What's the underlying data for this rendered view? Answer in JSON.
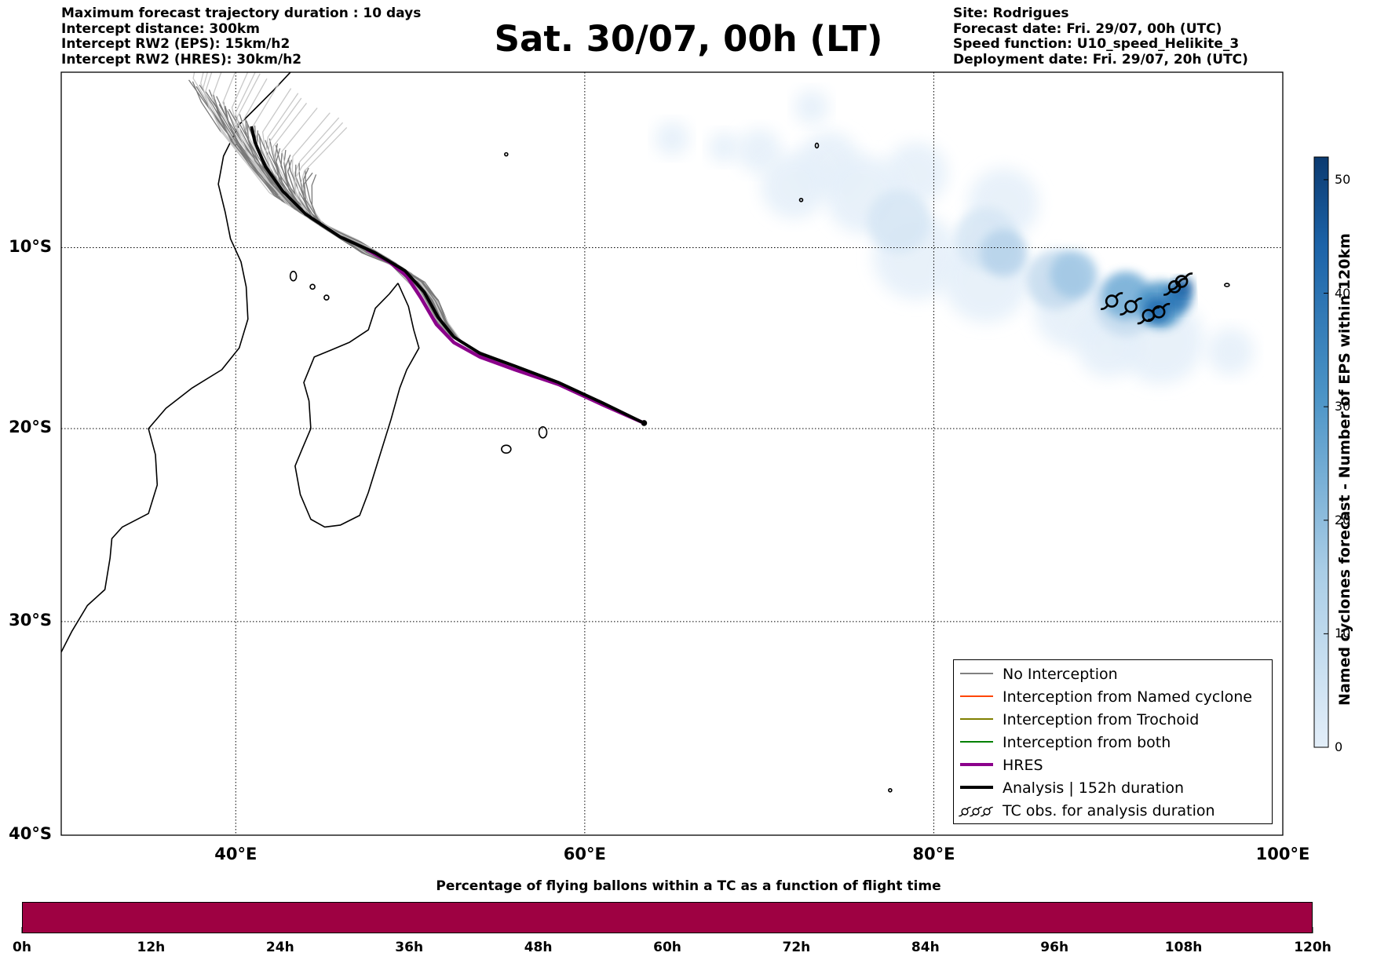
{
  "header": {
    "left_lines": [
      "Maximum forecast trajectory duration : 10 days",
      "Intercept distance: 300km",
      "Intercept RW2 (EPS):  15km/h2",
      "Intercept RW2 (HRES): 30km/h2"
    ],
    "title": "Sat. 30/07, 00h (LT)",
    "right_lines": [
      "Site: Rodrigues",
      "Forecast date: Fri. 29/07, 00h (UTC)",
      "Speed function: U10_speed_Helikite_3",
      "Deployment date: Fri. 29/07, 20h (UTC)"
    ]
  },
  "map": {
    "lon_range": [
      30,
      100
    ],
    "lat_range": [
      -40,
      0
    ],
    "lat_ticks": [
      {
        "value": -10,
        "label": "10°S"
      },
      {
        "value": -20,
        "label": "20°S"
      },
      {
        "value": -30,
        "label": "30°S"
      },
      {
        "value": -40,
        "label": "40°S"
      }
    ],
    "lon_ticks": [
      {
        "value": 40,
        "label": "40°E"
      },
      {
        "value": 60,
        "label": "60°E"
      },
      {
        "value": 80,
        "label": "80°E"
      },
      {
        "value": 100,
        "label": "100°E"
      }
    ],
    "gridlines": "dotted",
    "deployment_site": {
      "lon": 63.4,
      "lat": -19.7
    },
    "hres_track": [
      [
        63.4,
        -19.7
      ],
      [
        61.0,
        -18.7
      ],
      [
        58.5,
        -17.6
      ],
      [
        56.0,
        -16.8
      ],
      [
        54.0,
        -16.1
      ],
      [
        52.5,
        -15.3
      ],
      [
        51.5,
        -14.3
      ],
      [
        50.6,
        -12.8
      ],
      [
        49.8,
        -11.6
      ],
      [
        48.8,
        -10.8
      ],
      [
        47.5,
        -10.1
      ]
    ],
    "analysis_track": [
      [
        63.4,
        -19.7
      ],
      [
        61.0,
        -18.6
      ],
      [
        58.5,
        -17.5
      ],
      [
        56.0,
        -16.6
      ],
      [
        54.0,
        -15.9
      ],
      [
        52.5,
        -15.0
      ],
      [
        51.6,
        -13.9
      ],
      [
        50.8,
        -12.5
      ],
      [
        49.7,
        -11.3
      ],
      [
        48.0,
        -10.3
      ],
      [
        46.0,
        -9.4
      ],
      [
        44.0,
        -8.1
      ],
      [
        42.7,
        -6.8
      ],
      [
        41.7,
        -5.4
      ],
      [
        41.1,
        -4.0
      ],
      [
        40.9,
        -3.1
      ]
    ],
    "tc_observations": [
      [
        90.2,
        -13.0
      ],
      [
        91.3,
        -13.3
      ],
      [
        92.3,
        -13.8
      ],
      [
        92.9,
        -13.6
      ],
      [
        93.8,
        -12.2
      ],
      [
        94.2,
        -11.9
      ]
    ],
    "eps_density_colorbar": {
      "range": [
        0,
        52
      ],
      "ticks": [
        0,
        10,
        20,
        30,
        40,
        50
      ],
      "label": "Named cyclones forecast - Number of EPS within 120km",
      "color_low": "#e3eef9",
      "color_high": "#0b3a70"
    }
  },
  "legend": {
    "items": [
      {
        "label": "No Interception",
        "color": "#808080",
        "width": 1.3
      },
      {
        "label": "Interception from Named cyclone",
        "color": "#ff4500",
        "width": 1.3
      },
      {
        "label": "Interception from Trochoid",
        "color": "#808000",
        "width": 1.3
      },
      {
        "label": "Interception from both",
        "color": "#008000",
        "width": 1.3
      },
      {
        "label": "HRES",
        "color": "#8b008b",
        "width": 4
      },
      {
        "label": "Analysis | 152h duration",
        "color": "#000000",
        "width": 4
      },
      {
        "label": "TC obs. for analysis duration",
        "color": "#000000",
        "width": 0
      }
    ]
  },
  "flight_time_bar": {
    "title": "Percentage of flying ballons within a TC as a function of flight time",
    "color": "#9e0142",
    "labels": [
      "0h",
      "12h",
      "24h",
      "36h",
      "48h",
      "60h",
      "72h",
      "84h",
      "96h",
      "108h",
      "120h"
    ]
  }
}
